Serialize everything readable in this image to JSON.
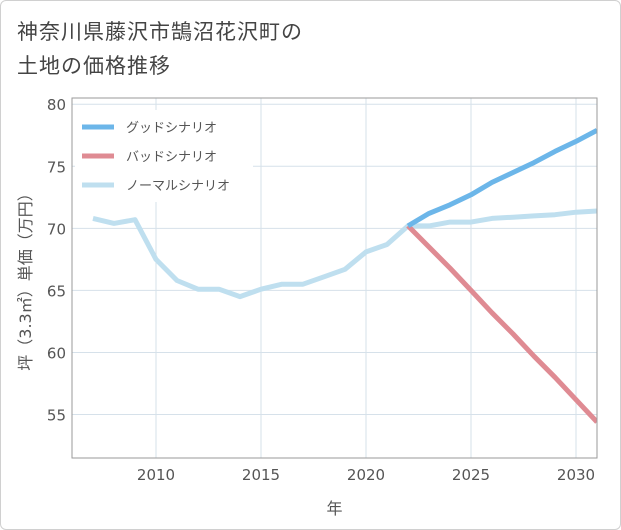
{
  "title_lines": [
    "神奈川県藤沢市鵠沼花沢町の",
    "土地の価格推移"
  ],
  "chart_data": {
    "type": "line",
    "xlabel": "年",
    "ylabel": "坪（3.3㎡）単価（万円）",
    "xlim": [
      2006,
      2031
    ],
    "ylim": [
      51.5,
      80.5
    ],
    "xticks": [
      2010,
      2015,
      2020,
      2025,
      2030
    ],
    "yticks": [
      55,
      60,
      65,
      70,
      75,
      80
    ],
    "grid": true,
    "legend_position": "top-left",
    "series": [
      {
        "name": "グッドシナリオ",
        "color": "#6cb6e9",
        "x": [
          2022,
          2023,
          2024,
          2025,
          2026,
          2027,
          2028,
          2029,
          2030,
          2031
        ],
        "y": [
          70.2,
          71.2,
          71.9,
          72.7,
          73.7,
          74.5,
          75.3,
          76.2,
          77.0,
          77.9
        ]
      },
      {
        "name": "バッドシナリオ",
        "color": "#df8b93",
        "x": [
          2022,
          2023,
          2024,
          2025,
          2026,
          2027,
          2028,
          2029,
          2030,
          2031
        ],
        "y": [
          70.2,
          68.5,
          66.8,
          65.0,
          63.2,
          61.5,
          59.7,
          58.0,
          56.2,
          54.4
        ]
      },
      {
        "name": "ノーマルシナリオ",
        "color": "#bfdfef",
        "x": [
          2007,
          2008,
          2009,
          2010,
          2011,
          2012,
          2013,
          2014,
          2015,
          2016,
          2017,
          2018,
          2019,
          2020,
          2021,
          2022,
          2023,
          2024,
          2025,
          2026,
          2027,
          2028,
          2029,
          2030,
          2031
        ],
        "y": [
          70.8,
          70.4,
          70.7,
          67.5,
          65.8,
          65.1,
          65.1,
          64.5,
          65.1,
          65.5,
          65.5,
          66.1,
          66.7,
          68.1,
          68.7,
          70.2,
          70.2,
          70.5,
          70.5,
          70.8,
          70.9,
          71.0,
          71.1,
          71.3,
          71.4
        ]
      }
    ]
  }
}
